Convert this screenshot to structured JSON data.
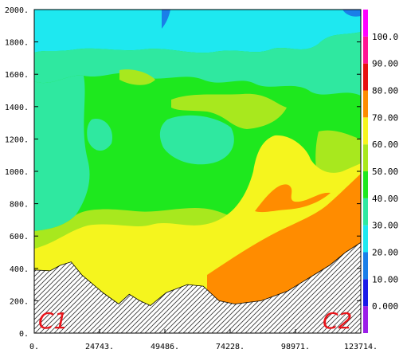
{
  "chart_data": {
    "type": "heatmap",
    "title": "",
    "xlabel": "",
    "ylabel": "",
    "xlim": [
      0,
      123714
    ],
    "ylim": [
      0,
      2000
    ],
    "x_ticks": [
      "0.",
      "24743.",
      "49486.",
      "74228.",
      "98971.",
      "123714."
    ],
    "y_ticks": [
      "0.",
      "200.",
      "400.",
      "600.",
      "800.",
      "1000.",
      "1200.",
      "1400.",
      "1600.",
      "1800.",
      "2000."
    ],
    "colorbar": {
      "levels": [
        "0.000",
        "10.00",
        "20.00",
        "30.00",
        "40.00",
        "50.00",
        "60.00",
        "70.00",
        "80.00",
        "90.00",
        "100.0"
      ],
      "colors": [
        "#9b1fe8",
        "#1a1ae8",
        "#1a7fe8",
        "#1ee8f0",
        "#2fe8a0",
        "#1ee81e",
        "#a8e81e",
        "#f5f51e",
        "#ff8c00",
        "#e81010",
        "#ff1493",
        "#ff00ff"
      ]
    },
    "terrain_profile": [
      [
        0,
        390
      ],
      [
        6000,
        385
      ],
      [
        10000,
        420
      ],
      [
        14000,
        440
      ],
      [
        18000,
        360
      ],
      [
        26000,
        250
      ],
      [
        32000,
        180
      ],
      [
        36000,
        240
      ],
      [
        40000,
        200
      ],
      [
        44000,
        170
      ],
      [
        50000,
        250
      ],
      [
        58000,
        300
      ],
      [
        64000,
        290
      ],
      [
        70000,
        200
      ],
      [
        76000,
        180
      ],
      [
        86000,
        200
      ],
      [
        96000,
        260
      ],
      [
        104000,
        340
      ],
      [
        112000,
        420
      ],
      [
        118000,
        500
      ],
      [
        123714,
        560
      ]
    ],
    "annotations": [
      "C1",
      "C2"
    ]
  }
}
